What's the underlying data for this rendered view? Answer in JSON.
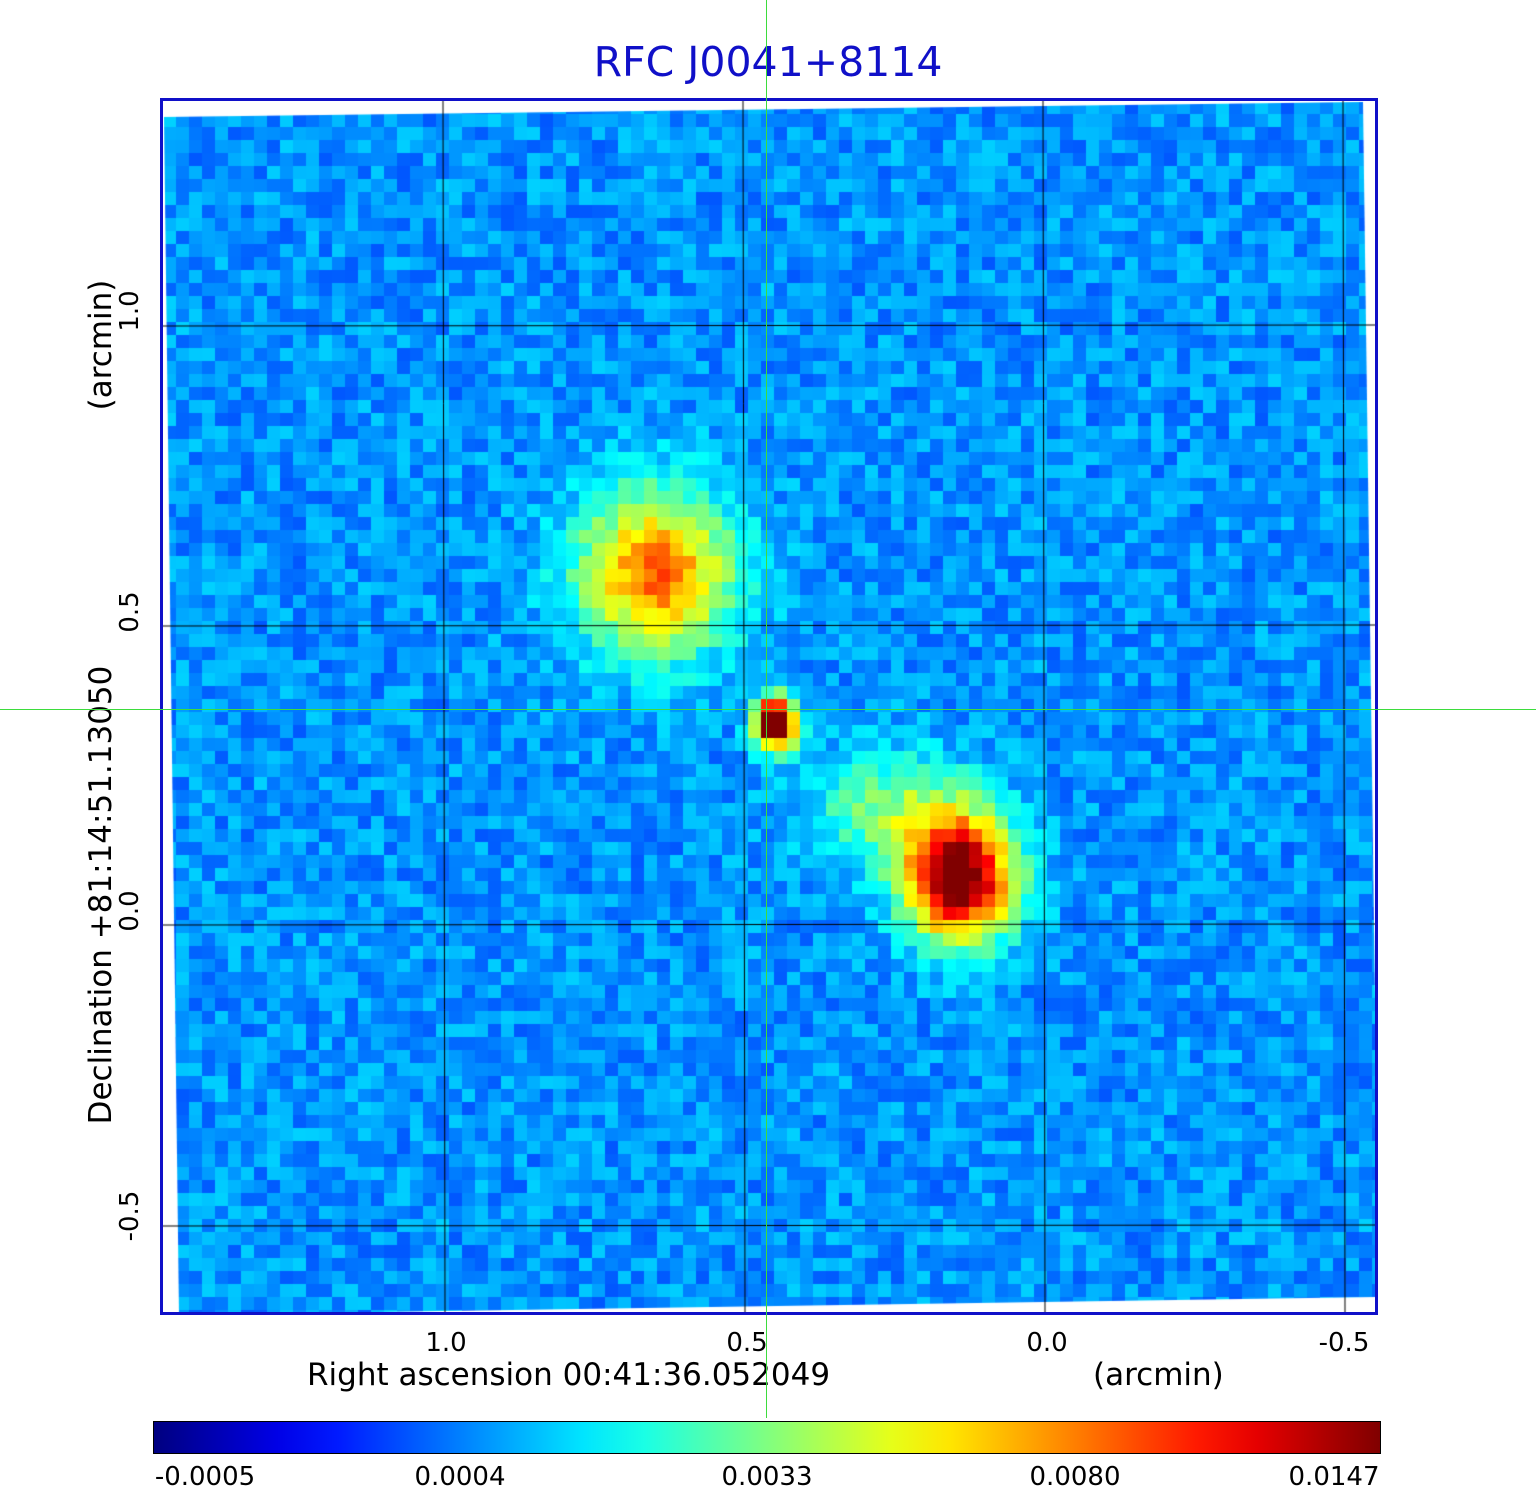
{
  "title": "RFC J0041+8114",
  "x_axis": {
    "label": "Right ascension  00:41:36.052049",
    "unit": "(arcmin)",
    "ticks": [
      "1.0",
      "0.5",
      "0.0",
      "-0.5"
    ]
  },
  "y_axis": {
    "label": "Declination  +81:14:51.13050",
    "unit": "(arcmin)",
    "ticks": [
      "1.0",
      "0.5",
      "0.0",
      "-0.5"
    ]
  },
  "colorbar": {
    "colormap": "jet",
    "ticks": [
      "-0.0005",
      "0.0004",
      "0.0033",
      "0.0080",
      "0.0147"
    ]
  },
  "colors": {
    "frame": "#1010c8",
    "crosshair": "#3ddc3d",
    "grid": "#000000"
  }
}
